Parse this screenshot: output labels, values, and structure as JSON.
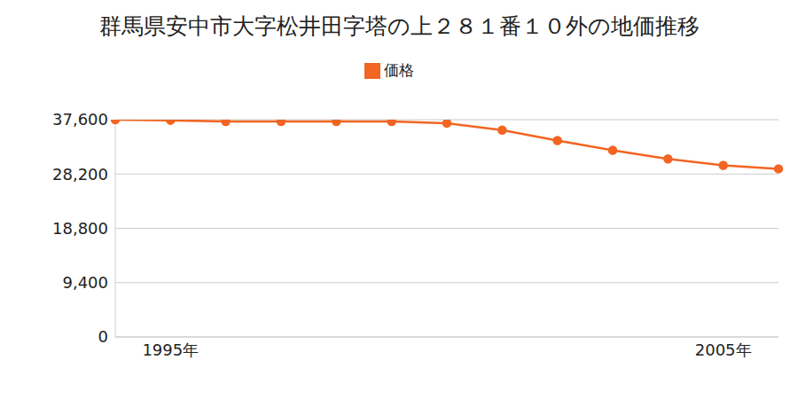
{
  "chart_data": {
    "type": "line",
    "title": "群馬県安中市大字松井田字塔の上２８１番１０外の地価推移",
    "categories": [
      null,
      "1995年",
      null,
      null,
      null,
      null,
      null,
      null,
      null,
      null,
      null,
      "2005年",
      null
    ],
    "series": [
      {
        "name": "価格",
        "color": "#f26522",
        "marker": "circle",
        "values": [
          37600,
          37500,
          37300,
          37300,
          37300,
          37300,
          37000,
          35800,
          34000,
          32300,
          30800,
          29700,
          29100
        ]
      }
    ],
    "ylim": [
      0,
      37600
    ],
    "yticks": [
      0,
      {
        "value": 9400,
        "label": "9,400"
      },
      {
        "value": 18800,
        "label": "18,800"
      },
      {
        "value": 28200,
        "label": "28,200"
      },
      {
        "value": 37600,
        "label": "37,600"
      }
    ],
    "grid": true,
    "legend": "top"
  }
}
